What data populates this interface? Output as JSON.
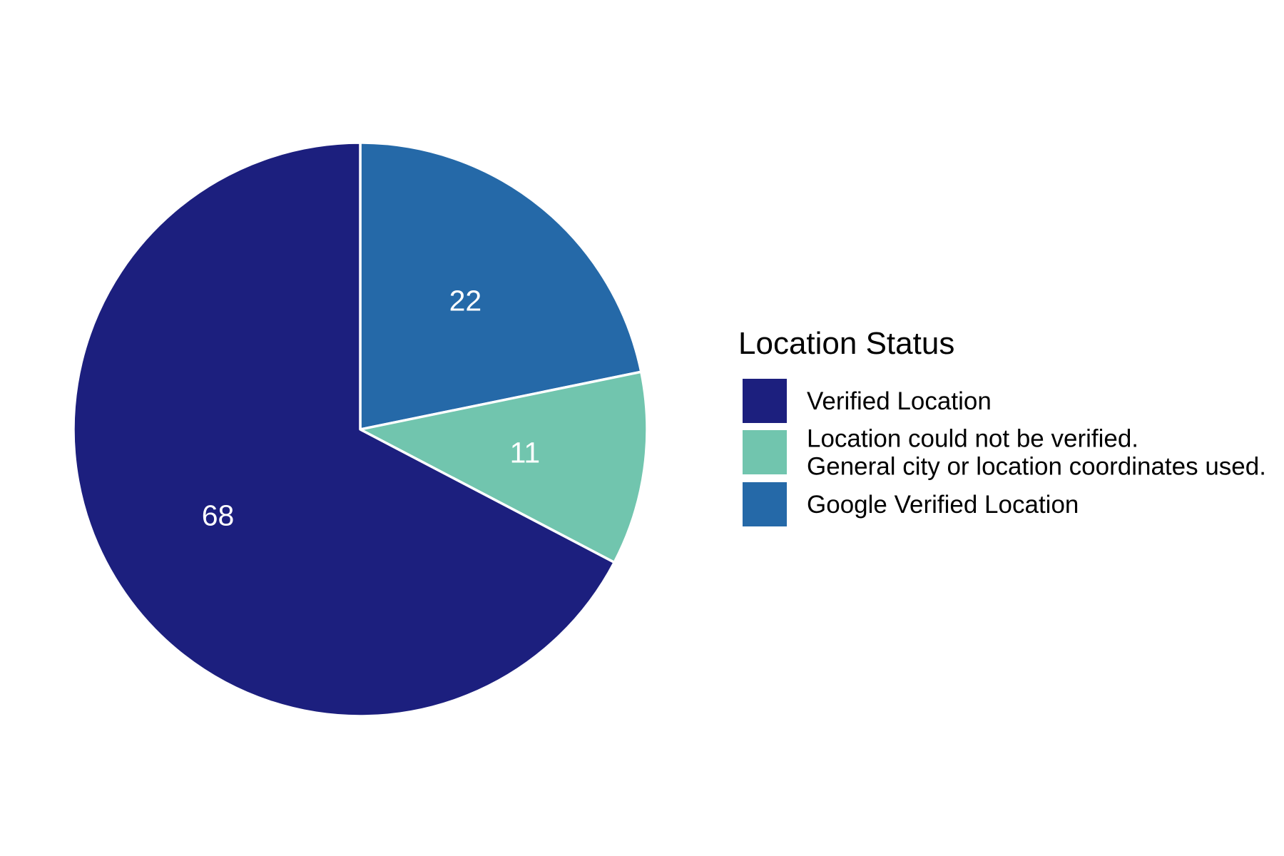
{
  "chart_data": {
    "type": "pie",
    "start_angle_deg": 0,
    "direction": "clockwise",
    "slices": [
      {
        "label": "Google Verified Location",
        "value": 22,
        "display": "22",
        "color": "#2569a8"
      },
      {
        "label": "Location could not be verified.\nGeneral city or location coordinates used.",
        "value": 11,
        "display": "11",
        "color": "#71c5ae"
      },
      {
        "label": "Verified Location",
        "value": 68,
        "display": "68",
        "color": "#1c1f7e"
      }
    ],
    "slice_border_color": "#ffffff",
    "legend": {
      "title": "Location Status",
      "placement": "right",
      "entries": [
        {
          "lines": [
            "Verified Location"
          ],
          "color": "#1c1f7e"
        },
        {
          "lines": [
            "Location could not be verified.",
            "General city or location coordinates used."
          ],
          "color": "#71c5ae"
        },
        {
          "lines": [
            "Google Verified Location"
          ],
          "color": "#2569a8"
        }
      ]
    }
  }
}
